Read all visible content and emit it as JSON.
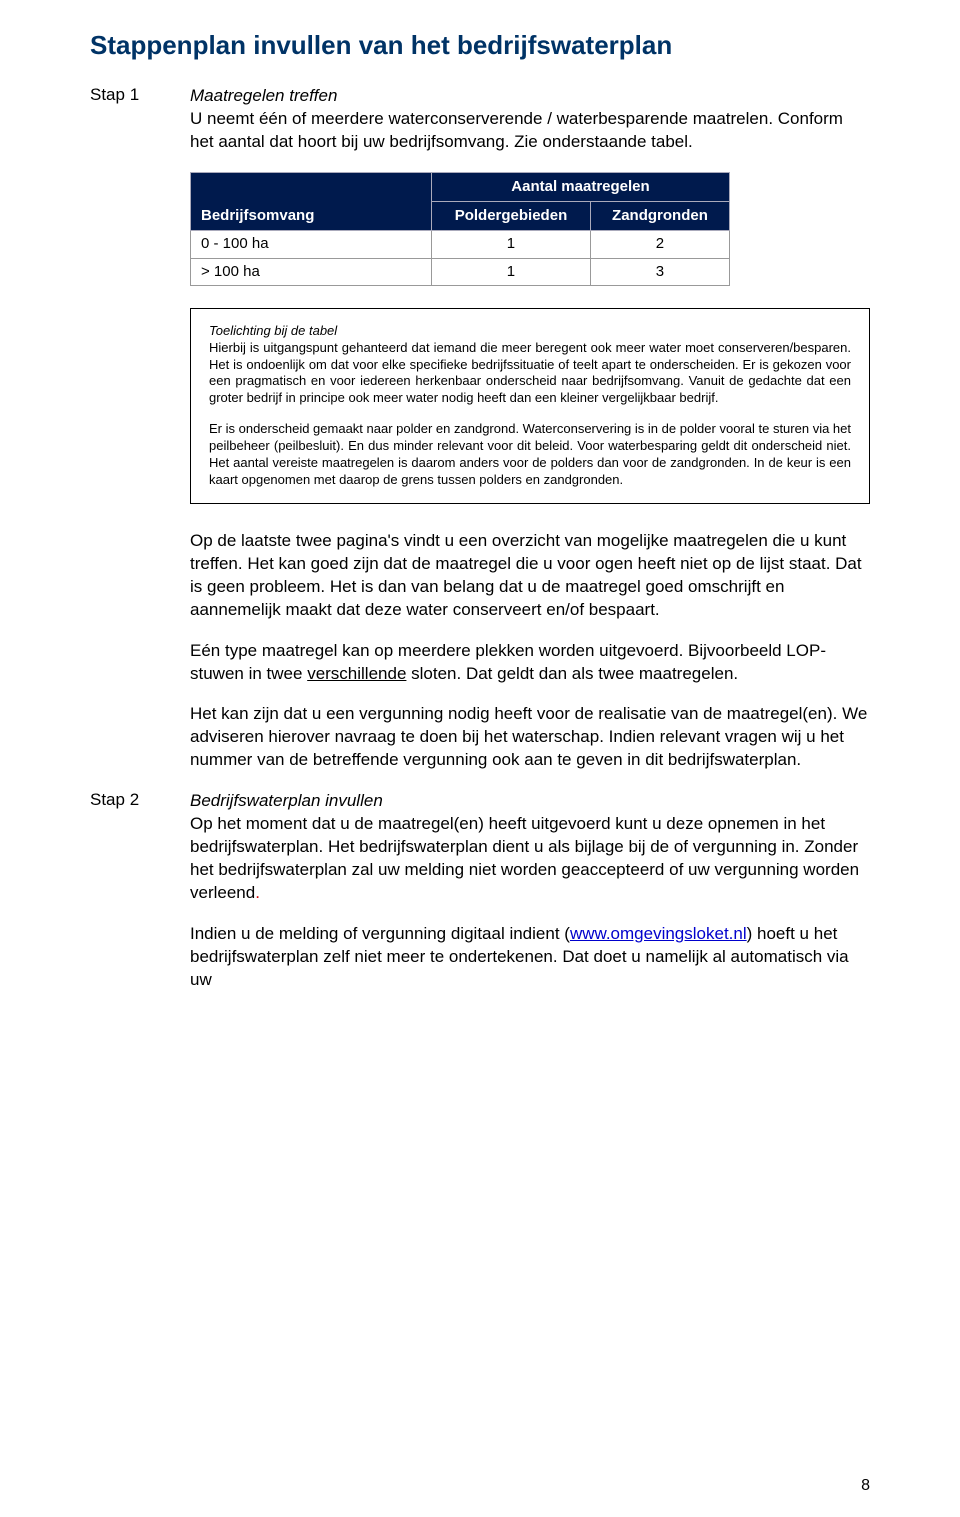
{
  "title": "Stappenplan invullen van het bedrijfswaterplan",
  "step1": {
    "label": "Stap 1",
    "heading": "Maatregelen treffen",
    "intro": "U neemt één of meerdere waterconserverende / waterbesparende maatrelen. Conform het aantal dat hoort bij uw bedrijfsomvang. Zie onderstaande tabel."
  },
  "table": {
    "col_bedrijfsomvang": "Bedrijfsomvang",
    "col_aantal": "Aantal maatregelen",
    "col_polder": "Poldergebieden",
    "col_zand": "Zandgronden",
    "rows": [
      {
        "range": "0 - 100 ha",
        "polder": "1",
        "zand": "2"
      },
      {
        "range": "> 100 ha",
        "polder": "1",
        "zand": "3"
      }
    ],
    "colors": {
      "header_bg": "#001a4d",
      "header_text": "#ffffff",
      "cell_border": "#999999"
    }
  },
  "note": {
    "title": "Toelichting bij de tabel",
    "para1": "Hierbij is uitgangspunt gehanteerd dat iemand die meer beregent ook meer water moet conserveren/besparen. Het is ondoenlijk om dat voor elke specifieke bedrijfssituatie of teelt apart te onderscheiden. Er is gekozen voor een pragmatisch en voor iedereen herkenbaar onderscheid naar bedrijfsomvang. Vanuit de gedachte dat een groter bedrijf in principe ook meer water nodig heeft dan een kleiner vergelijkbaar bedrijf.",
    "para2": "Er is onderscheid gemaakt naar polder en zandgrond. Waterconservering is in de polder vooral te sturen via het peilbeheer (peilbesluit). En dus minder relevant voor dit beleid. Voor waterbesparing geldt dit onderscheid niet. Het aantal vereiste maatregelen is daarom anders voor de polders dan voor de zandgronden. In de keur is een kaart opgenomen met daarop de grens tussen polders en zandgronden."
  },
  "body": {
    "para1": "Op de laatste twee pagina's vindt u een overzicht van mogelijke maatregelen die u kunt treffen. Het kan goed zijn dat de maatregel die u voor ogen heeft niet op de lijst staat. Dat is geen probleem. Het is dan van belang dat u de maatregel goed omschrijft en aannemelijk maakt dat deze water conserveert en/of bespaart.",
    "para2a": "Eén type maatregel kan op meerdere plekken worden uitgevoerd. Bijvoorbeeld LOP-stuwen in twee ",
    "para2u": "verschillende",
    "para2b": " sloten. Dat geldt dan als twee maatregelen.",
    "para3": "Het kan zijn dat u een vergunning nodig heeft voor de realisatie van de maatregel(en). We adviseren hierover navraag te doen bij het waterschap. Indien relevant vragen wij u het nummer van de betreffende vergunning ook aan te geven in dit bedrijfswaterplan."
  },
  "step2": {
    "label": "Stap 2",
    "heading": "Bedrijfswaterplan invullen",
    "para1a": "Op het moment dat u de maatregel(en) heeft uitgevoerd kunt u deze opnemen in het bedrijfswaterplan. Het bedrijfswaterplan dient u als bijlage bij de of vergunning in. Zonder het bedrijfswaterplan zal uw melding niet worden geaccepteerd of uw vergunning worden verleend",
    "para1dot": ".",
    "para2a": "Indien u de melding of vergunning digitaal indient (",
    "linktext": "www.omgevingsloket.nl",
    "para2b": ") hoeft u het bedrijfswaterplan zelf niet meer te ondertekenen. Dat doet u namelijk al automatisch via uw"
  },
  "pagenum": "8"
}
